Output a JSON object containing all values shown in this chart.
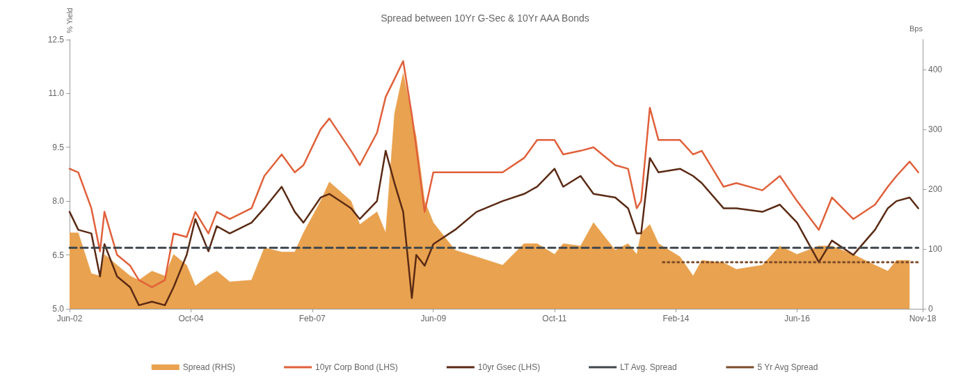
{
  "chart_data": {
    "type": "line",
    "title": "Spread between 10Yr G-Sec & 10Yr AAA Bonds",
    "ylabel": "% Yield",
    "y2label": "Bps",
    "x": [
      "2002-06",
      "2002-08",
      "2002-11",
      "2003-01",
      "2003-02",
      "2003-05",
      "2003-08",
      "2003-10",
      "2004-01",
      "2004-04",
      "2004-06",
      "2004-09",
      "2004-11",
      "2005-02",
      "2005-04",
      "2005-07",
      "2005-12",
      "2006-03",
      "2006-07",
      "2006-10",
      "2006-12",
      "2007-04",
      "2007-06",
      "2007-11",
      "2008-01",
      "2008-05",
      "2008-07",
      "2008-09",
      "2008-11",
      "2009-01",
      "2009-02",
      "2009-04",
      "2009-06",
      "2009-11",
      "2010-04",
      "2010-10",
      "2011-03",
      "2011-06",
      "2011-10",
      "2011-12",
      "2012-04",
      "2012-07",
      "2012-12",
      "2013-03",
      "2013-05",
      "2013-06",
      "2013-08",
      "2013-10",
      "2014-03",
      "2014-06",
      "2014-08",
      "2015-01",
      "2015-04",
      "2015-10",
      "2016-02",
      "2016-06",
      "2016-11",
      "2017-02",
      "2017-07",
      "2017-12",
      "2018-03",
      "2018-05",
      "2018-08",
      "2018-10"
    ],
    "series": [
      {
        "name": "Spread (RHS)",
        "type": "area",
        "axis": "y2",
        "color": "#e9a24f",
        "values": [
          127,
          127,
          59,
          55,
          91,
          73,
          55,
          48,
          63,
          55,
          91,
          73,
          38,
          55,
          63,
          45,
          48,
          102,
          95,
          95,
          127,
          180,
          212,
          180,
          141,
          162,
          127,
          326,
          394,
          322,
          287,
          180,
          144,
          98,
          87,
          73,
          109,
          109,
          91,
          109,
          105,
          144,
          98,
          109,
          91,
          127,
          141,
          109,
          87,
          55,
          81,
          77,
          66,
          73,
          105,
          91,
          105,
          105,
          91,
          73,
          63,
          81,
          81,
          null
        ]
      },
      {
        "name": "10yr Corp Bond (LHS)",
        "color": "#e0603a",
        "line_style": "solid",
        "values": [
          8.9,
          8.8,
          7.8,
          6.6,
          7.7,
          6.5,
          6.2,
          5.8,
          5.6,
          5.8,
          7.1,
          7.0,
          7.7,
          7.1,
          7.7,
          7.5,
          7.8,
          8.7,
          9.3,
          8.8,
          9.0,
          10.0,
          10.3,
          9.4,
          9.0,
          9.9,
          10.9,
          11.4,
          11.9,
          10.4,
          9.5,
          7.7,
          8.8,
          8.8,
          8.8,
          8.8,
          9.2,
          9.7,
          9.7,
          9.3,
          9.4,
          9.5,
          9.0,
          8.9,
          7.8,
          8.0,
          10.6,
          9.7,
          9.7,
          9.3,
          9.4,
          8.4,
          8.5,
          8.3,
          8.7,
          8.0,
          7.2,
          8.1,
          7.5,
          7.9,
          8.4,
          8.7,
          9.1,
          8.8
        ]
      },
      {
        "name": "10yr Gsec (LHS)",
        "color": "#5a2a14",
        "line_style": "solid",
        "values": [
          7.7,
          7.2,
          7.1,
          5.9,
          6.8,
          5.9,
          5.6,
          5.1,
          5.2,
          5.1,
          5.6,
          6.5,
          7.5,
          6.6,
          7.3,
          7.1,
          7.4,
          7.8,
          8.4,
          7.7,
          7.4,
          8.1,
          8.2,
          7.8,
          7.5,
          8.0,
          9.4,
          8.5,
          7.7,
          5.3,
          6.5,
          6.2,
          6.8,
          7.2,
          7.7,
          8.0,
          8.2,
          8.4,
          8.9,
          8.4,
          8.7,
          8.2,
          8.1,
          7.8,
          7.1,
          7.1,
          9.2,
          8.8,
          8.9,
          8.7,
          8.5,
          7.8,
          7.8,
          7.7,
          7.9,
          7.4,
          6.3,
          6.9,
          6.5,
          7.2,
          7.8,
          8.0,
          8.1,
          7.8
        ]
      },
      {
        "name": "LT Avg. Spread",
        "axis": "y2",
        "color": "#3f474d",
        "line_style": "dashed",
        "x": [
          "2002-06",
          "2018-10"
        ],
        "values": [
          102,
          102
        ]
      },
      {
        "name": "5 Yr Avg Spread",
        "axis": "y2",
        "color": "#7a4a2a",
        "line_style": "dotted",
        "x": [
          "2013-11",
          "2018-10"
        ],
        "values": [
          78,
          78
        ]
      }
    ],
    "xlim": [
      "2002-06",
      "2018-11"
    ],
    "xticks": [
      {
        "value": "2002-06",
        "label": "Jun-02"
      },
      {
        "value": "2004-10",
        "label": "Oct-04"
      },
      {
        "value": "2007-02",
        "label": "Feb-07"
      },
      {
        "value": "2009-06",
        "label": "Jun-09"
      },
      {
        "value": "2011-10",
        "label": "Oct-11"
      },
      {
        "value": "2014-02",
        "label": "Feb-14"
      },
      {
        "value": "2016-06",
        "label": "Jun-16"
      },
      {
        "value": "2018-11",
        "label": "Nov-18"
      }
    ],
    "ylim": [
      5,
      12.5
    ],
    "yticks": [
      {
        "value": 5,
        "label": "5.0"
      },
      {
        "value": 6.5,
        "label": "6.5"
      },
      {
        "value": 8,
        "label": "8.0"
      },
      {
        "value": 9.5,
        "label": "9.5"
      },
      {
        "value": 11,
        "label": "11.0"
      },
      {
        "value": 12.5,
        "label": "12.5"
      }
    ],
    "y2lim": [
      0,
      450
    ],
    "y2ticks": [
      0,
      100,
      200,
      300,
      400
    ],
    "grid": false,
    "legend": "bottom",
    "marker": "none"
  }
}
